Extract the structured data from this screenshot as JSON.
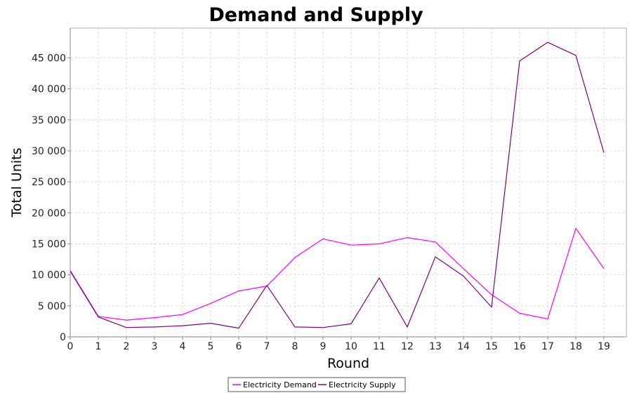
{
  "chart_data": {
    "type": "line",
    "title": "Demand and Supply",
    "xlabel": "Round",
    "ylabel": "Total Units",
    "x": [
      0,
      1,
      2,
      3,
      4,
      5,
      6,
      7,
      8,
      9,
      10,
      11,
      12,
      13,
      14,
      15,
      16,
      17,
      18,
      19
    ],
    "xlim": [
      0,
      19.8
    ],
    "ylim": [
      0,
      49800
    ],
    "yticks": [
      0,
      5000,
      10000,
      15000,
      20000,
      25000,
      30000,
      35000,
      40000,
      45000
    ],
    "ytick_labels": [
      "0",
      "5 000",
      "10 000",
      "15 000",
      "20 000",
      "25 000",
      "30 000",
      "35 000",
      "40 000",
      "45 000"
    ],
    "xtick_labels": [
      "0",
      "1",
      "2",
      "3",
      "4",
      "5",
      "6",
      "7",
      "8",
      "9",
      "10",
      "11",
      "12",
      "13",
      "14",
      "15",
      "16",
      "17",
      "18",
      "19"
    ],
    "grid": true,
    "legend_position": "bottom-center",
    "series": [
      {
        "name": "Electricity Demand",
        "color": "#ff00ff",
        "values": [
          10700,
          3300,
          2700,
          3100,
          3600,
          5400,
          7400,
          8200,
          12800,
          15800,
          14800,
          15000,
          16000,
          15300,
          11000,
          6800,
          3800,
          2900,
          17500,
          11000
        ]
      },
      {
        "name": "Electricity Supply",
        "color": "#800080",
        "values": [
          10600,
          3200,
          1500,
          1600,
          1800,
          2200,
          1400,
          8300,
          1600,
          1500,
          2100,
          9500,
          1600,
          12900,
          9800,
          4800,
          44500,
          47500,
          45400,
          29700
        ]
      }
    ]
  }
}
